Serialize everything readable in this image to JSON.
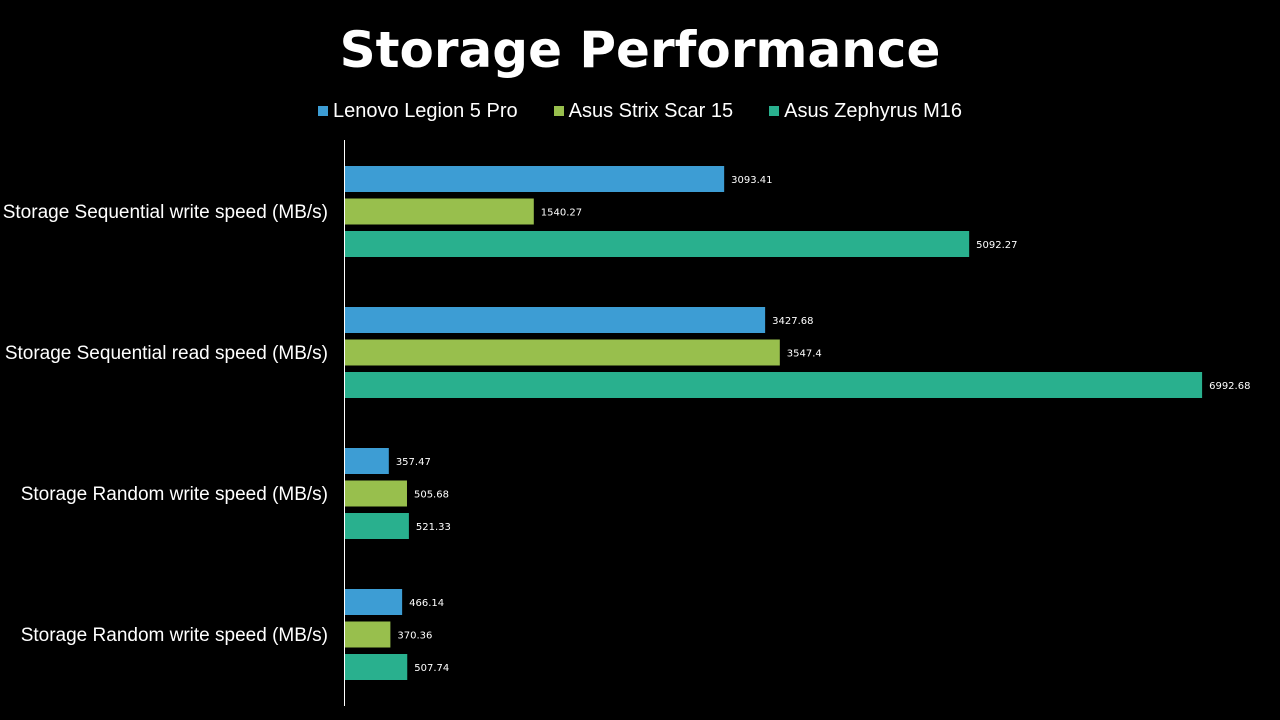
{
  "chart_data": {
    "type": "bar",
    "orientation": "horizontal",
    "title": "Storage Performance",
    "categories": [
      "Storage Sequential write speed (MB/s)",
      "Storage Sequential read speed (MB/s)",
      "Storage Random write speed (MB/s)",
      "Storage Random write speed (MB/s)"
    ],
    "series": [
      {
        "name": "Lenovo Legion 5 Pro",
        "color": "#3d9dd4",
        "values": [
          3093.41,
          3427.68,
          357.47,
          466.14
        ]
      },
      {
        "name": "Asus Strix Scar 15",
        "color": "#98bf4d",
        "values": [
          1540.27,
          3547.4,
          505.68,
          370.36
        ]
      },
      {
        "name": "Asus Zephyrus M16",
        "color": "#29b08e",
        "values": [
          5092.27,
          6992.68,
          521.33,
          507.74
        ]
      }
    ],
    "value_labels": [
      [
        "3093.41",
        "3427.68",
        "357.47",
        "466.14"
      ],
      [
        "1540.27",
        "3547.4",
        "505.68",
        "370.36"
      ],
      [
        "5092.27",
        "6992.68",
        "521.33",
        "507.74"
      ]
    ],
    "xlim": [
      0,
      7000
    ],
    "grid": false,
    "legend_position": "top-center",
    "background": "#000000",
    "axis_color": "#ffffff"
  }
}
